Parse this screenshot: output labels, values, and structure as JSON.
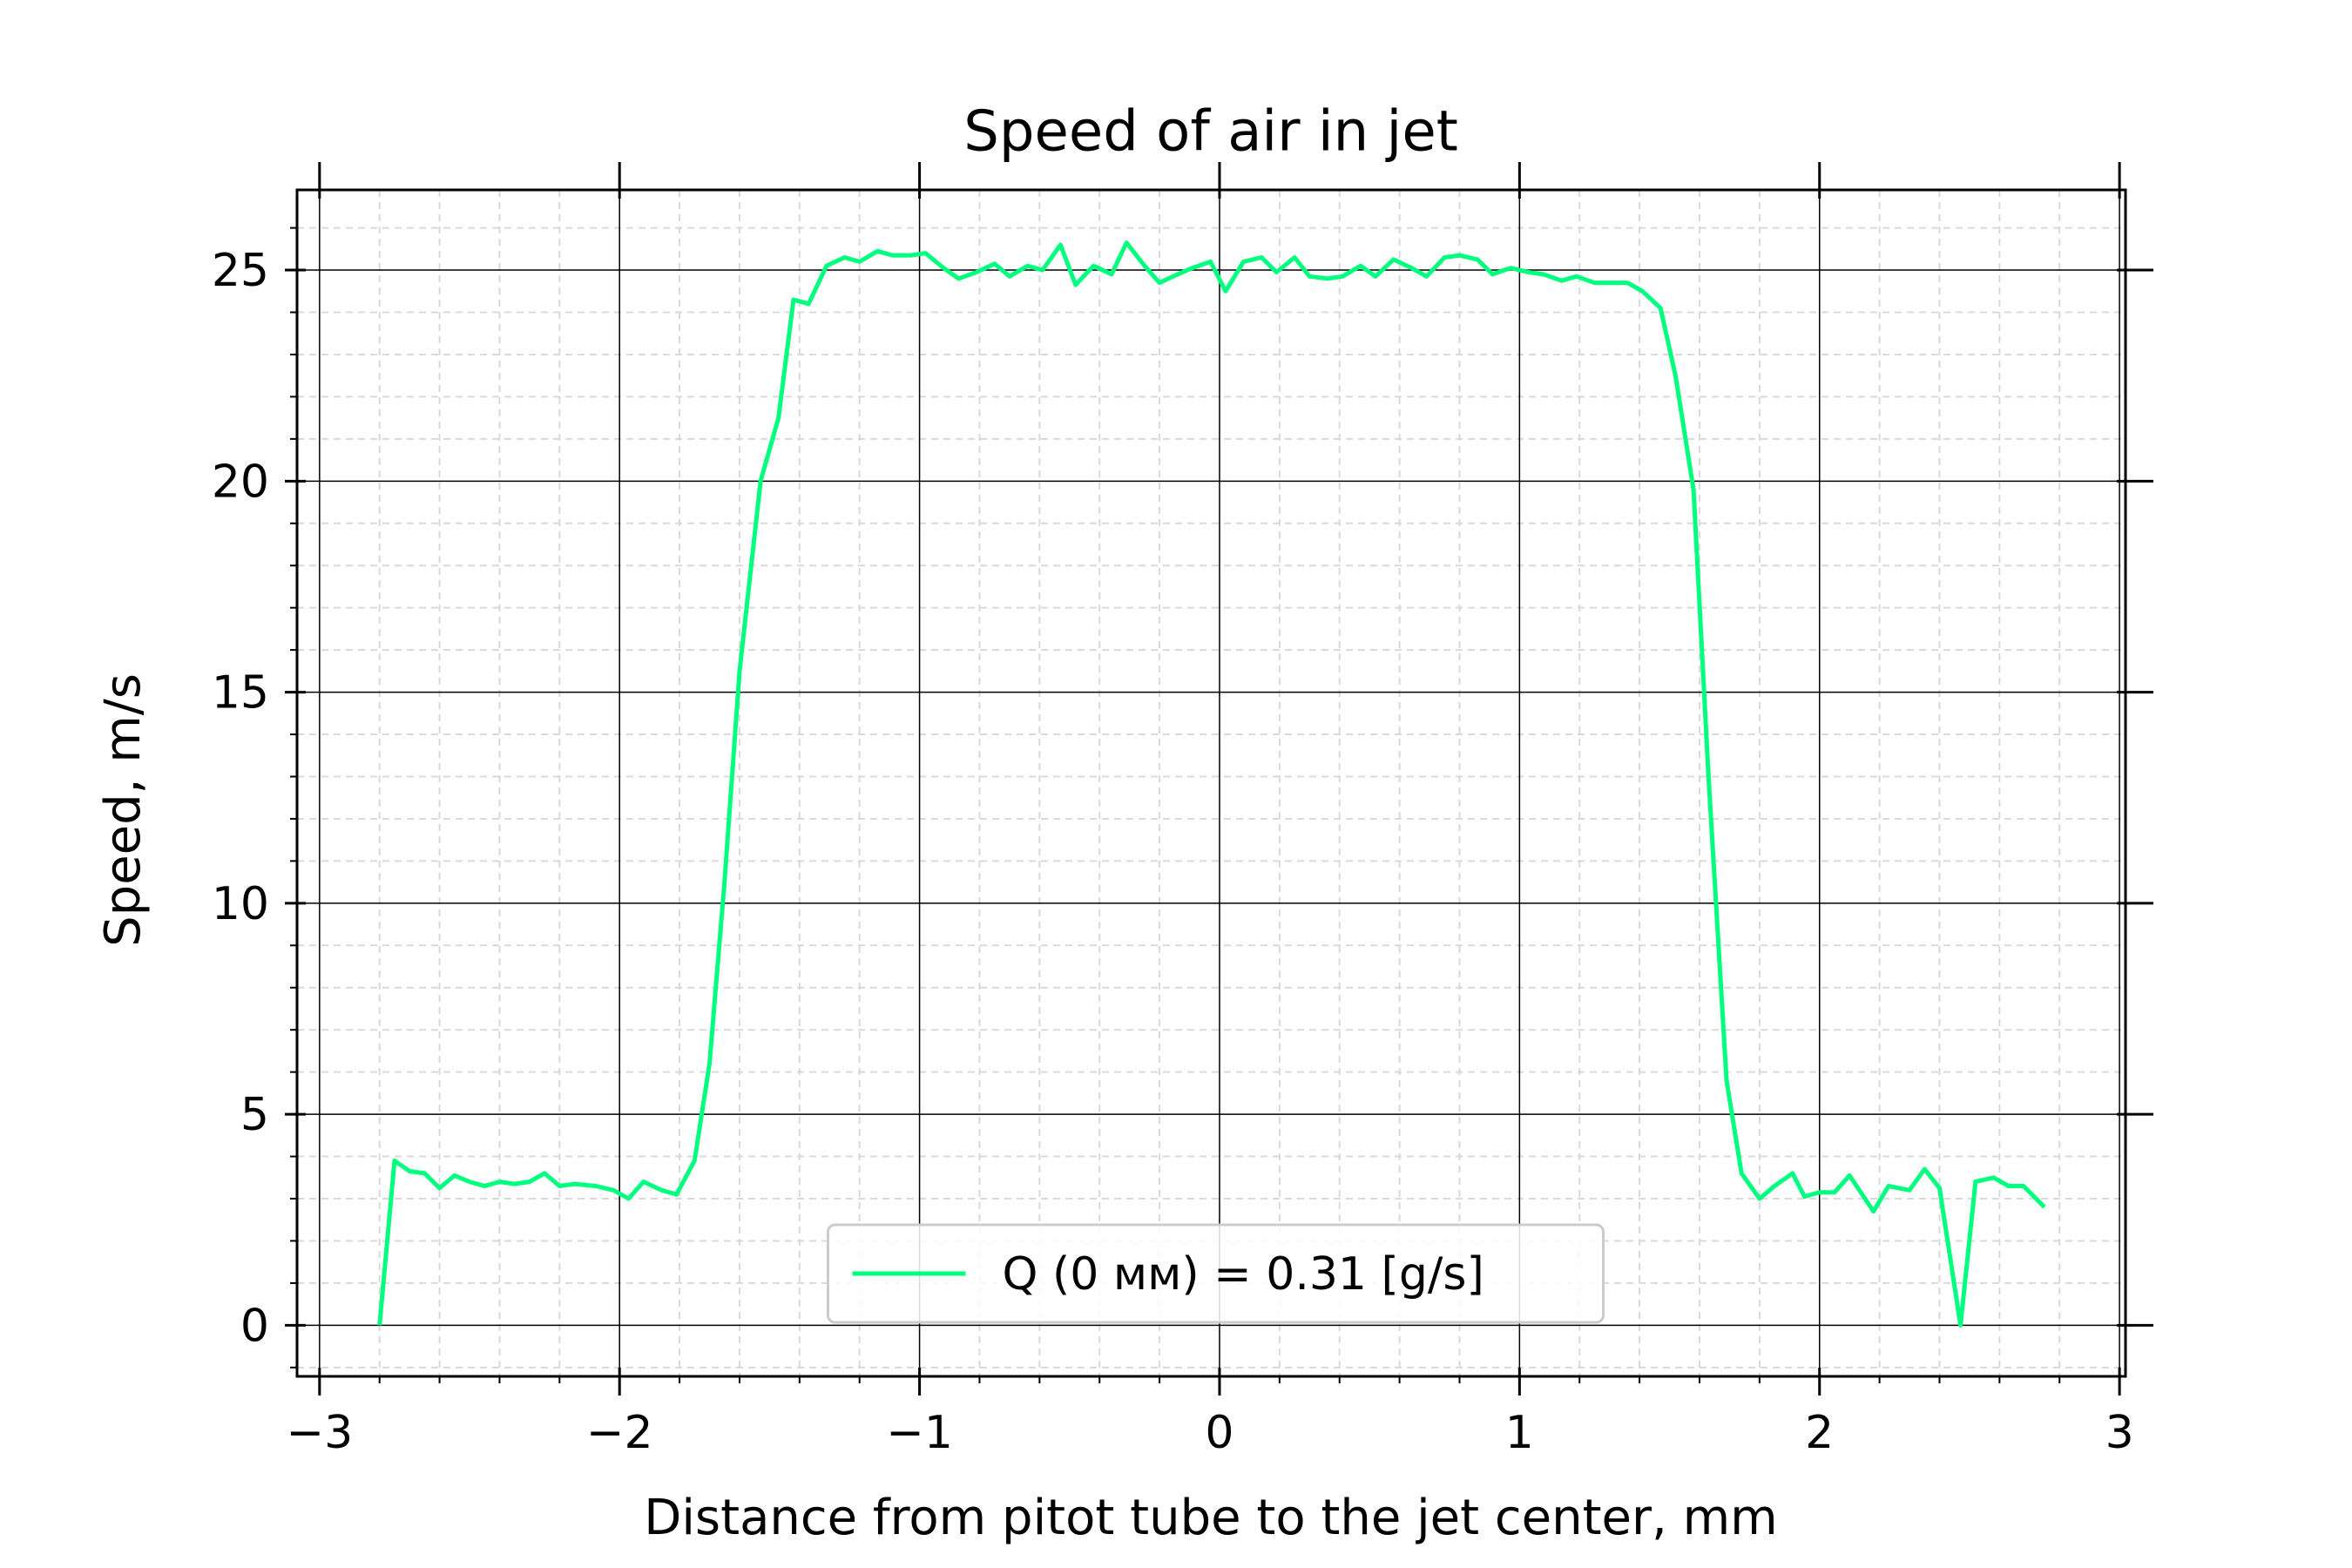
{
  "chart_data": {
    "type": "line",
    "title": "Speed of air in jet",
    "xlabel": "Distance from pitot tube to the jet center, mm",
    "ylabel": "Speed, m/s",
    "xlim": [
      -3.075,
      3.02
    ],
    "ylim": [
      -1.21,
      26.9
    ],
    "xticks": [
      {
        "value": -3,
        "label": "−3"
      },
      {
        "value": -2,
        "label": "−2"
      },
      {
        "value": -1,
        "label": "−1"
      },
      0,
      1,
      2,
      3
    ],
    "yticks": [
      0,
      5,
      10,
      15,
      20,
      25
    ],
    "xminorticks": [
      -2.8,
      -2.6,
      -2.4,
      -2.2,
      -1.8,
      -1.6,
      -1.4,
      -1.2,
      -0.8,
      -0.6,
      -0.4,
      -0.2,
      0.2,
      0.4,
      0.6,
      0.8,
      1.2,
      1.4,
      1.6,
      1.8,
      2.2,
      2.4,
      2.6,
      2.8
    ],
    "yminorticks": [
      -1,
      1,
      2,
      3,
      4,
      6,
      7,
      8,
      9,
      11,
      12,
      13,
      14,
      16,
      17,
      18,
      19,
      21,
      22,
      23,
      24,
      26
    ],
    "grid": true,
    "legend": "lower center",
    "x": [
      -2.8,
      -2.75,
      -2.7,
      -2.65,
      -2.6,
      -2.55,
      -2.5,
      -2.45,
      -2.4,
      -2.35,
      -2.3,
      -2.25,
      -2.2,
      -2.15,
      -2.08,
      -2.02,
      -1.97,
      -1.92,
      -1.86,
      -1.81,
      -1.75,
      -1.7,
      -1.65,
      -1.6,
      -1.53,
      -1.47,
      -1.42,
      -1.37,
      -1.31,
      -1.25,
      -1.2,
      -1.14,
      -1.09,
      -1.03,
      -0.98,
      -0.92,
      -0.87,
      -0.81,
      -0.75,
      -0.7,
      -0.64,
      -0.59,
      -0.53,
      -0.48,
      -0.42,
      -0.36,
      -0.31,
      -0.25,
      -0.2,
      -0.14,
      -0.09,
      -0.03,
      0.02,
      0.08,
      0.14,
      0.19,
      0.25,
      0.3,
      0.36,
      0.41,
      0.47,
      0.52,
      0.58,
      0.64,
      0.69,
      0.75,
      0.8,
      0.86,
      0.91,
      0.97,
      1.03,
      1.08,
      1.14,
      1.19,
      1.25,
      1.3,
      1.36,
      1.41,
      1.47,
      1.52,
      1.58,
      1.63,
      1.69,
      1.74,
      1.8,
      1.85,
      1.91,
      1.95,
      2.0,
      2.05,
      2.1,
      2.18,
      2.23,
      2.3,
      2.35,
      2.4,
      2.47,
      2.52,
      2.58,
      2.63,
      2.68,
      2.75
    ],
    "series": [
      {
        "name": "Q (0 мм) = 0.31 [g/s]",
        "color": "#00ff7f",
        "values": [
          0,
          3.9,
          3.65,
          3.6,
          3.25,
          3.55,
          3.4,
          3.3,
          3.4,
          3.35,
          3.4,
          3.6,
          3.3,
          3.35,
          3.3,
          3.2,
          3.0,
          3.4,
          3.2,
          3.1,
          3.9,
          6.2,
          10.5,
          15.5,
          20.0,
          21.5,
          24.3,
          24.2,
          25.1,
          25.3,
          25.2,
          25.45,
          25.35,
          25.35,
          25.4,
          25.05,
          24.8,
          24.95,
          25.15,
          24.85,
          25.1,
          25.0,
          25.6,
          24.65,
          25.1,
          24.9,
          25.65,
          25.1,
          24.7,
          24.9,
          25.05,
          25.2,
          24.5,
          25.2,
          25.3,
          24.95,
          25.3,
          24.85,
          24.8,
          24.85,
          25.1,
          24.85,
          25.25,
          25.05,
          24.85,
          25.3,
          25.35,
          25.25,
          24.9,
          25.05,
          24.95,
          24.9,
          24.75,
          24.85,
          24.7,
          24.7,
          24.7,
          24.5,
          24.1,
          22.5,
          19.8,
          13.0,
          5.8,
          3.6,
          3.0,
          3.3,
          3.6,
          3.05,
          3.15,
          3.15,
          3.55,
          2.7,
          3.3,
          3.2,
          3.7,
          3.25,
          0,
          3.4,
          3.5,
          3.3,
          3.3,
          2.8
        ]
      }
    ]
  }
}
